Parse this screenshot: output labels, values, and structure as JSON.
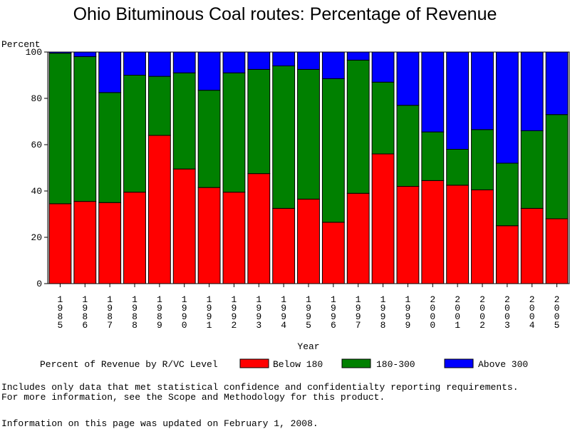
{
  "chart_data": {
    "type": "bar",
    "stacked": true,
    "title": "Ohio Bituminous Coal routes: Percentage of Revenue",
    "ylabel": "Percent",
    "xlabel": "Year",
    "ylim": [
      0,
      100
    ],
    "yticks": [
      "0",
      "20",
      "40",
      "60",
      "80",
      "100"
    ],
    "categories": [
      "1985",
      "1986",
      "1987",
      "1988",
      "1989",
      "1990",
      "1991",
      "1992",
      "1993",
      "1994",
      "1995",
      "1996",
      "1997",
      "1998",
      "1999",
      "2000",
      "2001",
      "2002",
      "2003",
      "2004",
      "2005"
    ],
    "legend_title": "Percent of Revenue by R/VC Level",
    "legend_position": "bottom",
    "series": [
      {
        "name": "Below 180",
        "color": "#ff0000",
        "values": [
          34.5,
          35.5,
          35,
          39.5,
          64,
          49.5,
          41.5,
          39.5,
          47.5,
          32.5,
          36.5,
          26.5,
          39,
          56,
          42,
          44.5,
          42.5,
          40.5,
          25,
          32.5,
          28
        ]
      },
      {
        "name": "180-300",
        "color": "#008000",
        "values": [
          65,
          62.5,
          47.5,
          50.5,
          25.5,
          41.5,
          42,
          51.5,
          45,
          61.5,
          56,
          62,
          57.5,
          31,
          35,
          21,
          15.5,
          26,
          27,
          33.5,
          45
        ]
      },
      {
        "name": "Above 300",
        "color": "#0000ff",
        "values": [
          0.5,
          2,
          17.5,
          10,
          10.5,
          9,
          16.5,
          9,
          7.5,
          6,
          7.5,
          11.5,
          3.5,
          13,
          23,
          34.5,
          42,
          33.5,
          48,
          34,
          27
        ]
      }
    ]
  },
  "footnote_line1": "Includes only data that met statistical confidence and confidentialty reporting requirements.",
  "footnote_line2": "For more information, see the Scope and Methodology for this product.",
  "updated": "Information on this page was updated on February 1, 2008."
}
